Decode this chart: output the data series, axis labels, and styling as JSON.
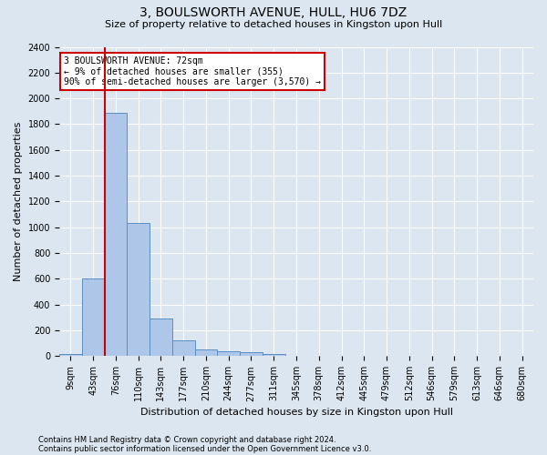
{
  "title": "3, BOULSWORTH AVENUE, HULL, HU6 7DZ",
  "subtitle": "Size of property relative to detached houses in Kingston upon Hull",
  "xlabel": "Distribution of detached houses by size in Kingston upon Hull",
  "ylabel": "Number of detached properties",
  "footnote1": "Contains HM Land Registry data © Crown copyright and database right 2024.",
  "footnote2": "Contains public sector information licensed under the Open Government Licence v3.0.",
  "bar_labels": [
    "9sqm",
    "43sqm",
    "76sqm",
    "110sqm",
    "143sqm",
    "177sqm",
    "210sqm",
    "244sqm",
    "277sqm",
    "311sqm",
    "345sqm",
    "378sqm",
    "412sqm",
    "445sqm",
    "479sqm",
    "512sqm",
    "546sqm",
    "579sqm",
    "613sqm",
    "646sqm",
    "680sqm"
  ],
  "bar_values": [
    20,
    600,
    1890,
    1030,
    290,
    120,
    50,
    40,
    30,
    20,
    0,
    0,
    0,
    0,
    0,
    0,
    0,
    0,
    0,
    0,
    0
  ],
  "bar_color": "#aec6e8",
  "bar_edge_color": "#5a8fc2",
  "ylim": [
    0,
    2400
  ],
  "yticks": [
    0,
    200,
    400,
    600,
    800,
    1000,
    1200,
    1400,
    1600,
    1800,
    2000,
    2200,
    2400
  ],
  "vline_color": "#cc0000",
  "annotation_text": "3 BOULSWORTH AVENUE: 72sqm\n← 9% of detached houses are smaller (355)\n90% of semi-detached houses are larger (3,570) →",
  "annotation_box_color": "#cc0000",
  "bg_color": "#dce6f0",
  "plot_bg_color": "#dce6f0",
  "grid_color": "#ffffff",
  "title_fontsize": 10,
  "subtitle_fontsize": 8,
  "ylabel_fontsize": 8,
  "xlabel_fontsize": 8,
  "tick_fontsize": 7,
  "footnote_fontsize": 6
}
